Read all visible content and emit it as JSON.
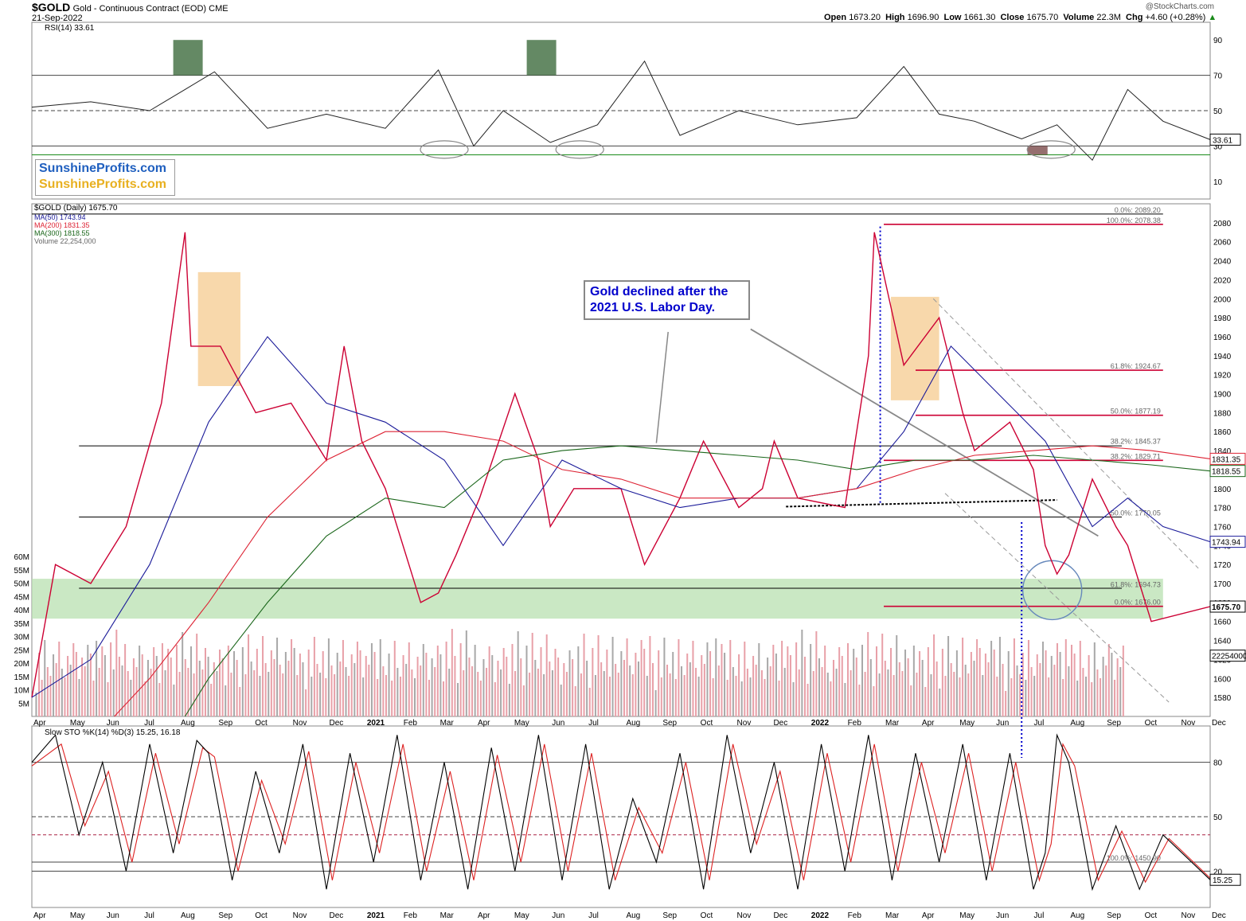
{
  "header": {
    "symbol": "$GOLD",
    "description": "Gold - Continuous Contract (EOD) CME",
    "date": "21-Sep-2022",
    "open_label": "Open",
    "open": "1673.20",
    "high_label": "High",
    "high": "1696.90",
    "low_label": "Low",
    "low": "1661.30",
    "close_label": "Close",
    "close": "1675.70",
    "volume_label": "Volume",
    "volume": "22.3M",
    "chg_label": "Chg",
    "chg": "+4.60 (+0.28%)",
    "watermark": "@StockCharts.com"
  },
  "branding": {
    "line1": "SunshineProfits.com",
    "line2": "SunshineProfits.com",
    "color1": "#1f5fbf",
    "color2": "#e8b020"
  },
  "callout": {
    "line1": "Gold declined after the",
    "line2": "2021 U.S. Labor Day."
  },
  "colors": {
    "price_up": "#000000",
    "price_down": "#cc0033",
    "ma50": "#1a1a99",
    "ma200": "#dd2233",
    "ma300": "#1a661a",
    "support_zone": "#b8e0b0",
    "highlight_box": "#f5c888",
    "fib_line": "#cc0033"
  },
  "chart_data": [
    {
      "type": "line",
      "name": "rsi-panel",
      "legend": "RSI(14) 33.61",
      "ylim": [
        0,
        100
      ],
      "yticks": [
        "90",
        "70",
        "50",
        "30",
        "10"
      ],
      "ytick_values": [
        90,
        70,
        50,
        30,
        10
      ],
      "last_value": "33.61",
      "levels": [
        70,
        50,
        30,
        25
      ],
      "x": [
        0,
        0.05,
        0.1,
        0.13,
        0.155,
        0.2,
        0.25,
        0.3,
        0.345,
        0.375,
        0.4,
        0.44,
        0.48,
        0.52,
        0.55,
        0.6,
        0.65,
        0.7,
        0.74,
        0.77,
        0.8,
        0.84,
        0.87,
        0.9,
        0.93,
        0.96,
        1.0
      ],
      "y": [
        52,
        55,
        50,
        62,
        72,
        40,
        48,
        40,
        73,
        30,
        50,
        32,
        42,
        78,
        36,
        50,
        42,
        46,
        75,
        48,
        44,
        34,
        42,
        22,
        62,
        44,
        33.61
      ]
    },
    {
      "type": "line",
      "name": "price-panel",
      "title": "$GOLD (Daily) 1675.70",
      "legend": [
        "MA(50) 1743.94",
        "MA(200) 1831.35",
        "MA(300) 1818.55",
        "Volume 22,254,000"
      ],
      "ylim": [
        1560,
        2100
      ],
      "yticks": [
        "2080",
        "2060",
        "2040",
        "2020",
        "2000",
        "1980",
        "1960",
        "1940",
        "1920",
        "1900",
        "1880",
        "1860",
        "1840",
        "1820",
        "1800",
        "1780",
        "1760",
        "1740",
        "1720",
        "1700",
        "1680",
        "1660",
        "1640",
        "1620",
        "1600",
        "1580"
      ],
      "ytick_values": [
        2080,
        2060,
        2040,
        2020,
        2000,
        1980,
        1960,
        1940,
        1920,
        1900,
        1880,
        1860,
        1840,
        1820,
        1800,
        1780,
        1760,
        1740,
        1720,
        1700,
        1680,
        1660,
        1640,
        1620,
        1600,
        1580
      ],
      "volume_ticks": [
        "60M",
        "55M",
        "50M",
        "45M",
        "40M",
        "35M",
        "30M",
        "25M",
        "20M",
        "15M",
        "10M",
        "5M"
      ],
      "volume_tick_values": [
        60,
        55,
        50,
        45,
        40,
        35,
        30,
        25,
        20,
        15,
        10,
        5
      ],
      "x_labels": [
        "Apr",
        "May",
        "Jun",
        "Jul",
        "Aug",
        "Sep",
        "Oct",
        "Nov",
        "Dec",
        "2021",
        "Feb",
        "Mar",
        "Apr",
        "May",
        "Jun",
        "Jul",
        "Aug",
        "Sep",
        "Oct",
        "Nov",
        "Dec",
        "2022",
        "Feb",
        "Mar",
        "Apr",
        "May",
        "Jun",
        "Jul",
        "Aug",
        "Sep",
        "Oct",
        "Nov",
        "Dec"
      ],
      "x_label_positions": [
        0,
        0.031,
        0.062,
        0.094,
        0.125,
        0.157,
        0.188,
        0.22,
        0.251,
        0.283,
        0.314,
        0.345,
        0.377,
        0.408,
        0.44,
        0.471,
        0.503,
        0.534,
        0.566,
        0.597,
        0.628,
        0.66,
        0.691,
        0.723,
        0.754,
        0.786,
        0.817,
        0.849,
        0.88,
        0.911,
        0.943,
        0.974,
        1.0
      ],
      "series": [
        {
          "name": "$GOLD",
          "x": [
            0,
            0.02,
            0.05,
            0.08,
            0.11,
            0.13,
            0.135,
            0.16,
            0.19,
            0.22,
            0.25,
            0.265,
            0.28,
            0.3,
            0.33,
            0.345,
            0.36,
            0.38,
            0.41,
            0.43,
            0.44,
            0.46,
            0.5,
            0.52,
            0.55,
            0.57,
            0.6,
            0.62,
            0.63,
            0.65,
            0.69,
            0.71,
            0.715,
            0.74,
            0.77,
            0.79,
            0.8,
            0.83,
            0.85,
            0.86,
            0.87,
            0.88,
            0.9,
            0.92,
            0.93,
            0.94,
            0.95,
            1.0
          ],
          "y": [
            1580,
            1720,
            1700,
            1760,
            1890,
            2070,
            1950,
            1950,
            1880,
            1890,
            1830,
            1950,
            1850,
            1800,
            1680,
            1690,
            1730,
            1790,
            1900,
            1830,
            1760,
            1800,
            1800,
            1720,
            1790,
            1850,
            1780,
            1800,
            1850,
            1790,
            1780,
            1940,
            2070,
            1930,
            1980,
            1880,
            1840,
            1870,
            1820,
            1740,
            1710,
            1730,
            1810,
            1760,
            1740,
            1700,
            1660,
            1675.7
          ]
        },
        {
          "name": "MA(50)",
          "x": [
            0,
            0.05,
            0.1,
            0.15,
            0.2,
            0.25,
            0.3,
            0.35,
            0.4,
            0.45,
            0.5,
            0.55,
            0.6,
            0.65,
            0.7,
            0.74,
            0.78,
            0.82,
            0.86,
            0.9,
            0.93,
            0.96,
            1.0
          ],
          "y": [
            1580,
            1620,
            1720,
            1870,
            1960,
            1890,
            1870,
            1830,
            1740,
            1830,
            1800,
            1780,
            1790,
            1790,
            1800,
            1860,
            1950,
            1900,
            1850,
            1760,
            1790,
            1760,
            1743.94
          ]
        },
        {
          "name": "MA(200)",
          "x": [
            0.07,
            0.1,
            0.15,
            0.2,
            0.25,
            0.3,
            0.35,
            0.4,
            0.45,
            0.5,
            0.55,
            0.6,
            0.65,
            0.7,
            0.75,
            0.8,
            0.85,
            0.9,
            0.95,
            1.0
          ],
          "y": [
            1560,
            1600,
            1680,
            1770,
            1830,
            1860,
            1860,
            1850,
            1820,
            1810,
            1790,
            1790,
            1790,
            1800,
            1820,
            1835,
            1840,
            1845,
            1840,
            1831.35
          ]
        },
        {
          "name": "MA(300)",
          "x": [
            0.13,
            0.15,
            0.2,
            0.25,
            0.3,
            0.35,
            0.4,
            0.45,
            0.5,
            0.55,
            0.6,
            0.65,
            0.7,
            0.75,
            0.8,
            0.85,
            0.9,
            0.95,
            1.0
          ],
          "y": [
            1560,
            1600,
            1680,
            1750,
            1790,
            1780,
            1830,
            1840,
            1845,
            1840,
            1835,
            1830,
            1820,
            1830,
            1830,
            1835,
            1830,
            1825,
            1818.55
          ]
        }
      ],
      "fib_levels": [
        {
          "label": "0.0%: 2089.20",
          "value": 2089.2
        },
        {
          "label": "100.0%: 2078.38",
          "value": 2078.38
        },
        {
          "label": "61.8%: 1924.67",
          "value": 1924.67
        },
        {
          "label": "50.0%: 1877.19",
          "value": 1877.19
        },
        {
          "label": "38.2%: 1845.37",
          "value": 1845.37
        },
        {
          "label": "38.2%: 1829.71",
          "value": 1829.71
        },
        {
          "label": "50.0%: 1770.05",
          "value": 1770.05
        },
        {
          "label": "61.8%: 1694.73",
          "value": 1694.73
        },
        {
          "label": "0.0%: 1676.00",
          "value": 1676.0
        }
      ],
      "right_badges": [
        {
          "label": "1831.35",
          "value": 1831.35,
          "color": "#dd2233"
        },
        {
          "label": "1818.55",
          "value": 1818.55,
          "color": "#1a661a"
        },
        {
          "label": "1743.94",
          "value": 1743.94,
          "color": "#1a1a99"
        },
        {
          "label": "1675.70",
          "value": 1675.7,
          "color": "#000000"
        },
        {
          "label": "22254000",
          "value": 1624,
          "color": "#000000"
        }
      ],
      "support_zone": [
        1663,
        1705
      ]
    },
    {
      "type": "line",
      "name": "stochastic-panel",
      "legend": "Slow STO %K(14) %D(3) 15.25, 16.18",
      "ylim": [
        0,
        100
      ],
      "yticks": [
        "80",
        "50",
        "20"
      ],
      "ytick_values": [
        80,
        50,
        20
      ],
      "last_value": "15.25",
      "levels": [
        80,
        50,
        40,
        25,
        20
      ],
      "fib_label": "100.0%: 1450.90",
      "series": [
        {
          "name": "%K",
          "x": [
            0,
            0.02,
            0.04,
            0.06,
            0.08,
            0.1,
            0.12,
            0.14,
            0.15,
            0.17,
            0.19,
            0.21,
            0.23,
            0.25,
            0.27,
            0.29,
            0.31,
            0.33,
            0.35,
            0.37,
            0.39,
            0.41,
            0.43,
            0.45,
            0.47,
            0.49,
            0.51,
            0.53,
            0.55,
            0.57,
            0.59,
            0.61,
            0.63,
            0.65,
            0.67,
            0.69,
            0.71,
            0.73,
            0.75,
            0.77,
            0.79,
            0.81,
            0.83,
            0.85,
            0.86,
            0.87,
            0.88,
            0.9,
            0.92,
            0.94,
            0.96,
            1.0
          ],
          "y": [
            80,
            95,
            40,
            80,
            20,
            90,
            30,
            92,
            85,
            15,
            75,
            30,
            90,
            10,
            85,
            25,
            95,
            15,
            80,
            10,
            88,
            20,
            95,
            15,
            90,
            10,
            60,
            25,
            85,
            10,
            95,
            30,
            80,
            10,
            90,
            20,
            95,
            15,
            85,
            25,
            90,
            15,
            85,
            10,
            30,
            95,
            80,
            10,
            45,
            10,
            40,
            15.25
          ]
        },
        {
          "name": "%D",
          "x": [
            0,
            0.025,
            0.045,
            0.065,
            0.085,
            0.105,
            0.125,
            0.145,
            0.155,
            0.175,
            0.195,
            0.215,
            0.235,
            0.255,
            0.275,
            0.295,
            0.315,
            0.335,
            0.355,
            0.375,
            0.395,
            0.415,
            0.435,
            0.455,
            0.475,
            0.495,
            0.515,
            0.535,
            0.555,
            0.575,
            0.595,
            0.615,
            0.635,
            0.655,
            0.675,
            0.695,
            0.715,
            0.735,
            0.755,
            0.775,
            0.795,
            0.815,
            0.835,
            0.855,
            0.865,
            0.875,
            0.885,
            0.905,
            0.925,
            0.945,
            0.965,
            1.0
          ],
          "y": [
            78,
            90,
            45,
            75,
            25,
            85,
            35,
            88,
            83,
            20,
            70,
            35,
            86,
            15,
            80,
            30,
            90,
            20,
            75,
            15,
            84,
            25,
            90,
            20,
            85,
            15,
            55,
            30,
            80,
            15,
            90,
            35,
            75,
            15,
            85,
            25,
            90,
            20,
            80,
            30,
            85,
            20,
            80,
            15,
            35,
            90,
            78,
            15,
            42,
            14,
            38,
            16.18
          ]
        }
      ]
    }
  ]
}
